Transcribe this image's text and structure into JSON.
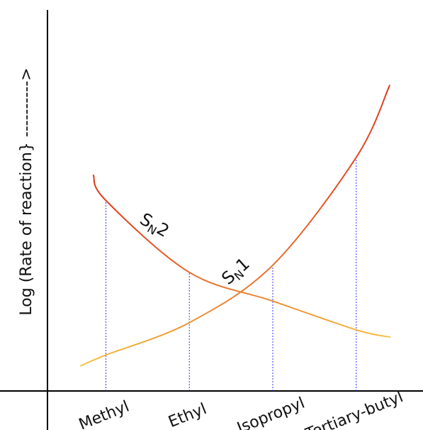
{
  "colors": {
    "axis": "#000000",
    "guide": "#3333ff",
    "sn1_start": "#f5c242",
    "sn1_end": "#e03a1e",
    "sn2_start": "#e03a1e",
    "sn2_end": "#f5c242"
  },
  "chart_data": {
    "type": "line",
    "title": "",
    "xlabel": "",
    "ylabel": "Log (Rate of reaction} ---------->",
    "categories": [
      "Methyl",
      "Ethyl",
      "Isopropyl",
      "Tertiary-butyl"
    ],
    "grid": false,
    "legend": "none",
    "series": [
      {
        "name": "SN1",
        "label_main": "S",
        "label_sub": "N",
        "label_end": "1",
        "x": [
          -0.3,
          0.0,
          1.0,
          2.0,
          3.0,
          3.4
        ],
        "y": [
          0.6,
          0.9,
          1.8,
          3.4,
          6.4,
          8.4
        ]
      },
      {
        "name": "SN2",
        "label_main": "S",
        "label_sub": "N",
        "label_end": "2",
        "x": [
          -0.15,
          0.0,
          1.0,
          2.0,
          3.0,
          3.4
        ],
        "y": [
          5.9,
          5.2,
          3.2,
          2.4,
          1.6,
          1.4
        ]
      }
    ],
    "ylim": [
      -0.1,
      10.5
    ],
    "xlim": [
      -0.7,
      3.8
    ]
  }
}
